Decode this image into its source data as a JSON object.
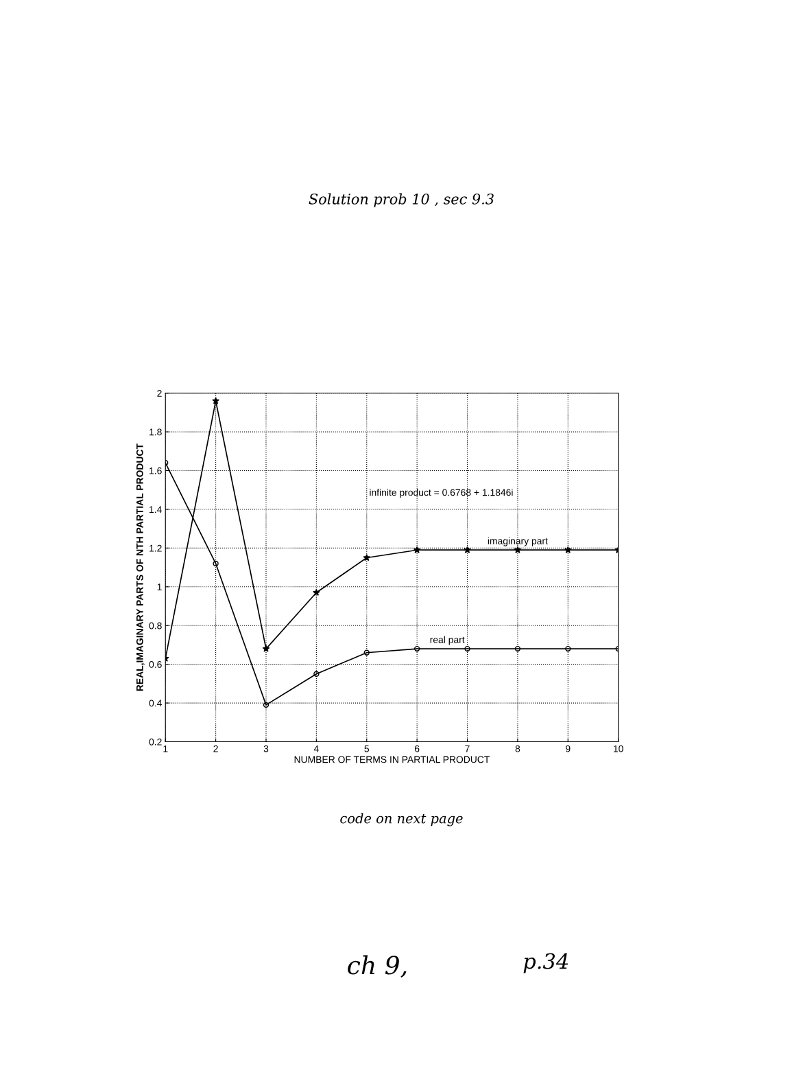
{
  "chart_data": {
    "type": "line",
    "title": "Solution prob 10 , sec 9.3",
    "xlabel": "NUMBER OF TERMS IN PARTIAL PRODUCT",
    "ylabel": "REAL,IMAGINARY PARTS OF NTH PARTIAL PRODUCT",
    "x": [
      1,
      2,
      3,
      4,
      5,
      6,
      7,
      8,
      9,
      10
    ],
    "series": [
      {
        "color": "#000000",
        "marker": "circle",
        "values": [
          1.64,
          1.12,
          0.39,
          0.55,
          0.66,
          0.68,
          0.68,
          0.68,
          0.68,
          0.68
        ]
      },
      {
        "color": "#000000",
        "marker": "star",
        "values": [
          0.63,
          1.96,
          0.68,
          0.97,
          1.15,
          1.19,
          1.19,
          1.19,
          1.19,
          1.19
        ]
      }
    ],
    "xlim": [
      1,
      10
    ],
    "xticks": [
      1,
      2,
      3,
      4,
      5,
      6,
      7,
      8,
      9,
      10
    ],
    "ylim": [
      0.2,
      2
    ],
    "yticks": [
      0.2,
      0.4,
      0.6,
      0.8,
      1,
      1.2,
      1.4,
      1.6,
      1.8,
      2
    ],
    "grid": true,
    "line_style": "solid",
    "annotations": [
      "infinite product = 0.6768 + 1.1846i",
      {
        "text": "imaginary part",
        "x": 8,
        "y": 1.19
      },
      {
        "text": "real part",
        "x": 6.6,
        "y": 0.68
      },
      "code on next page",
      "ch 9,",
      "p.34"
    ]
  }
}
